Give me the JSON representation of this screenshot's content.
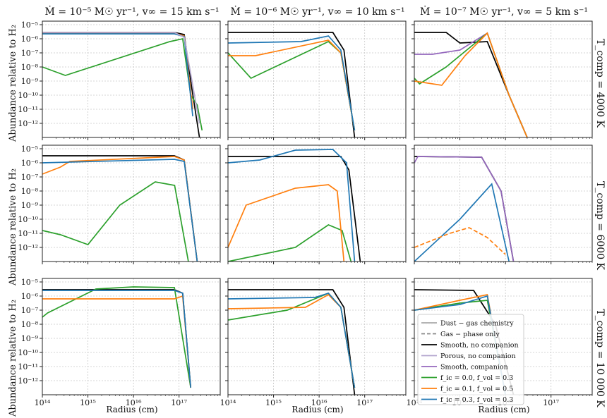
{
  "figure": {
    "col_titles": [
      "Ṁ = 10⁻⁵ M☉ yr⁻¹,  v∞ = 15 km s⁻¹",
      "Ṁ = 10⁻⁶ M☉ yr⁻¹,  v∞ = 10 km s⁻¹",
      "Ṁ = 10⁻⁷ M☉ yr⁻¹,  v∞ = 5 km s⁻¹"
    ],
    "row_labels": [
      "T_comp = 4000 K",
      "T_comp = 6000 K",
      "T_comp = 10 000 K"
    ],
    "ylabel": "Abundance relative to H₂",
    "xlabel": "Radius (cm)"
  },
  "chart_data": {
    "type": "line",
    "xscale": "log",
    "yscale": "log",
    "units": {
      "x": "cm",
      "y": "log10 abundance relative to H2"
    },
    "xlim": [
      100000000000000.0,
      8e+17
    ],
    "ylim_by_row": [
      [
        1e-13,
        1e-05
      ],
      [
        1e-13,
        1e-05
      ],
      [
        1e-13,
        1e-05
      ]
    ],
    "x_ticks": [
      "10¹⁴",
      "10¹⁵",
      "10¹⁶",
      "10¹⁷"
    ],
    "y_ticks": [
      "10⁻⁵",
      "10⁻⁶",
      "10⁻⁷",
      "10⁻⁸",
      "10⁻⁹",
      "10⁻¹⁰",
      "10⁻¹¹",
      "10⁻¹²"
    ],
    "legend": {
      "location": "lower-left of bottom-right panel",
      "entries": [
        {
          "label": "Dust − gas chemistry",
          "color": "#aaaaaa",
          "dash": "solid"
        },
        {
          "label": "Gas − phase only",
          "color": "#888888",
          "dash": "dashed"
        },
        {
          "label": "Smooth, no companion",
          "color": "#000000",
          "dash": "solid"
        },
        {
          "label": "Porous, no companion",
          "color": "#b5a8cf",
          "dash": "solid"
        },
        {
          "label": "Smooth, companion",
          "color": "#9467bd",
          "dash": "solid"
        },
        {
          "label": "f_ic = 0.0, f_vol = 0.3",
          "color": "#2ca02c",
          "dash": "solid"
        },
        {
          "label": "f_ic = 0.1, f_vol = 0.5",
          "color": "#ff7f0e",
          "dash": "solid"
        },
        {
          "label": "f_ic = 0.3, f_vol = 0.3",
          "color": "#1f77b4",
          "dash": "solid"
        }
      ]
    },
    "panels": [
      {
        "row": 0,
        "col": 0,
        "series": [
          {
            "name": "Smooth, no companion",
            "color": "#000000",
            "dash": false,
            "x": [
              100000000000000.0,
              7.9e+16,
              1.3e+17,
              1.9e+17,
              2.8e+17
            ],
            "y": [
              -5.55,
              -5.55,
              -5.7,
              -9.5,
              -13
            ]
          },
          {
            "name": "f_ic = 0.0, f_vol = 0.3",
            "color": "#2ca02c",
            "dash": false,
            "x": [
              100000000000000.0,
              320000000000000.0,
              6.3e+16,
              1.2e+17,
              1.8e+17,
              2.5e+17,
              3.2e+17
            ],
            "y": [
              -8,
              -8.6,
              -6.2,
              -6.0,
              -10,
              -10.7,
              -12.5
            ]
          },
          {
            "name": "f_ic = 0.1, f_vol = 0.5",
            "color": "#ff7f0e",
            "dash": false,
            "x": [
              100000000000000.0,
              7.9e+16,
              1.3e+17,
              2e+17
            ],
            "y": [
              -5.6,
              -5.6,
              -5.8,
              -11
            ]
          },
          {
            "name": "f_ic = 0.3, f_vol = 0.3",
            "color": "#1f77b4",
            "dash": false,
            "x": [
              100000000000000.0,
              7.9e+16,
              1.3e+17,
              2e+17
            ],
            "y": [
              -5.65,
              -5.65,
              -5.85,
              -11.5
            ]
          },
          {
            "name": "Porous, no companion",
            "color": "#b5a8cf",
            "dash": false,
            "x": [
              100000000000000.0,
              7.9e+16,
              1.3e+17,
              2.8e+17
            ],
            "y": [
              -5.55,
              -5.55,
              -5.9,
              -12
            ]
          }
        ]
      },
      {
        "row": 0,
        "col": 1,
        "series": [
          {
            "name": "Smooth, no companion",
            "color": "#000000",
            "dash": false,
            "x": [
              100000000000000.0,
              2e+16,
              3.5e+16,
              6e+16
            ],
            "y": [
              -5.55,
              -5.55,
              -6.8,
              -13
            ]
          },
          {
            "name": "f_ic = 0.0, f_vol = 0.3",
            "color": "#2ca02c",
            "dash": false,
            "x": [
              100000000000000.0,
              320000000000000.0,
              1.6e+16,
              3e+16,
              6e+16
            ],
            "y": [
              -7,
              -8.8,
              -6.2,
              -7,
              -12.5
            ]
          },
          {
            "name": "f_ic = 0.1, f_vol = 0.5",
            "color": "#ff7f0e",
            "dash": false,
            "x": [
              100000000000000.0,
              400000000000000.0,
              1.6e+16,
              3e+16,
              6e+16
            ],
            "y": [
              -7.2,
              -7.2,
              -6.1,
              -7,
              -12.5
            ]
          },
          {
            "name": "f_ic = 0.3, f_vol = 0.3",
            "color": "#1f77b4",
            "dash": false,
            "x": [
              100000000000000.0,
              4000000000000000.0,
              1.6e+16,
              3e+16,
              6e+16
            ],
            "y": [
              -6.3,
              -6.2,
              -5.8,
              -6.8,
              -12.5
            ]
          }
        ]
      },
      {
        "row": 0,
        "col": 2,
        "series": [
          {
            "name": "Smooth, no companion",
            "color": "#000000",
            "dash": false,
            "x": [
              100000000000000.0,
              500000000000000.0,
              1000000000000000.0,
              4000000000000000.0,
              1.2e+16,
              3e+16
            ],
            "y": [
              -5.55,
              -5.55,
              -6.3,
              -6.2,
              -10,
              -13
            ]
          },
          {
            "name": "Smooth, companion",
            "color": "#9467bd",
            "dash": false,
            "x": [
              100000000000000.0,
              250000000000000.0,
              1000000000000000.0,
              4000000000000000.0,
              1.2e+16,
              3e+16
            ],
            "y": [
              -7.1,
              -7.1,
              -6.8,
              -5.6,
              -10,
              -13
            ]
          },
          {
            "name": "f_ic = 0.0, f_vol = 0.3",
            "color": "#2ca02c",
            "dash": false,
            "x": [
              100000000000000.0,
              130000000000000.0,
              500000000000000.0,
              4000000000000000.0,
              1.2e+16,
              3e+16
            ],
            "y": [
              -8.8,
              -9.2,
              -8,
              -5.6,
              -10,
              -13
            ]
          },
          {
            "name": "f_ic = 0.1, f_vol = 0.5",
            "color": "#ff7f0e",
            "dash": false,
            "x": [
              100000000000000.0,
              400000000000000.0,
              1300000000000000.0,
              4000000000000000.0,
              1.2e+16,
              3e+16
            ],
            "y": [
              -9,
              -9.3,
              -7.2,
              -5.6,
              -10,
              -13
            ]
          }
        ]
      },
      {
        "row": 1,
        "col": 0,
        "series": [
          {
            "name": "Smooth, no companion",
            "color": "#000000",
            "dash": false,
            "x": [
              100000000000000.0,
              7.9e+16,
              1.3e+17,
              2.5e+17
            ],
            "y": [
              -5.5,
              -5.5,
              -5.8,
              -13
            ]
          },
          {
            "name": "f_ic = 0.0, f_vol = 0.3",
            "color": "#2ca02c",
            "dash": false,
            "x": [
              100000000000000.0,
              250000000000000.0,
              1000000000000000.0,
              5000000000000000.0,
              3e+16,
              8e+16,
              1.6e+17
            ],
            "y": [
              -10.8,
              -11.1,
              -11.8,
              -9,
              -7.35,
              -7.6,
              -13
            ]
          },
          {
            "name": "f_ic = 0.1, f_vol = 0.5",
            "color": "#ff7f0e",
            "dash": false,
            "x": [
              100000000000000.0,
              250000000000000.0,
              400000000000000.0,
              7.9e+16,
              1.3e+17,
              2.5e+17
            ],
            "y": [
              -6.8,
              -6.3,
              -5.9,
              -5.55,
              -5.8,
              -13
            ]
          },
          {
            "name": "f_ic = 0.3, f_vol = 0.3",
            "color": "#1f77b4",
            "dash": false,
            "x": [
              100000000000000.0,
              7.9e+16,
              1.3e+17,
              2.5e+17
            ],
            "y": [
              -6,
              -5.75,
              -5.9,
              -13
            ]
          }
        ]
      },
      {
        "row": 1,
        "col": 1,
        "series": [
          {
            "name": "Smooth, no companion",
            "color": "#000000",
            "dash": false,
            "x": [
              100000000000000.0,
              3e+16,
              4.5e+16,
              8e+16
            ],
            "y": [
              -5.55,
              -5.55,
              -6.5,
              -13
            ]
          },
          {
            "name": "f_ic = 0.0, f_vol = 0.3",
            "color": "#2ca02c",
            "dash": false,
            "x": [
              100000000000000.0,
              3000000000000000.0,
              1.6e+16,
              3.2e+16,
              5e+16
            ],
            "y": [
              -13,
              -12,
              -10.4,
              -10.8,
              -13
            ]
          },
          {
            "name": "f_ic = 0.1, f_vol = 0.5",
            "color": "#ff7f0e",
            "dash": false,
            "x": [
              100000000000000.0,
              250000000000000.0,
              3000000000000000.0,
              1.6e+16,
              2.5e+16,
              3.5e+16
            ],
            "y": [
              -12,
              -9,
              -7.8,
              -7.55,
              -8,
              -13
            ]
          },
          {
            "name": "f_ic = 0.3, f_vol = 0.3",
            "color": "#1f77b4",
            "dash": false,
            "x": [
              100000000000000.0,
              500000000000000.0,
              3000000000000000.0,
              2e+16,
              4e+16,
              6e+16
            ],
            "y": [
              -6,
              -5.8,
              -5.1,
              -5.05,
              -6,
              -13
            ]
          }
        ]
      },
      {
        "row": 1,
        "col": 2,
        "series": [
          {
            "name": "Smooth, no companion",
            "color": "#000000",
            "dash": false,
            "x": [
              100000000000000.0,
              3000000000000000.0,
              8000000000000000.0,
              1.5e+16
            ],
            "y": [
              -5.55,
              -5.6,
              -8,
              -13
            ]
          },
          {
            "name": "Smooth, companion",
            "color": "#9467bd",
            "dash": false,
            "x": [
              100000000000000.0,
              120000000000000.0,
              3000000000000000.0,
              8000000000000000.0,
              1.5e+16
            ],
            "y": [
              -6,
              -5.55,
              -5.6,
              -8,
              -13
            ]
          },
          {
            "name": "f_ic = 0.3, f_vol = 0.3",
            "color": "#1f77b4",
            "dash": false,
            "x": [
              100000000000000.0,
              1000000000000000.0,
              5000000000000000.0,
              1.2e+16
            ],
            "y": [
              -13,
              -10,
              -7.5,
              -13
            ]
          },
          {
            "name": "f_ic = 0.1, f_vol = 0.5",
            "color": "#ff7f0e",
            "dash": true,
            "x": [
              100000000000000.0,
              600000000000000.0,
              1600000000000000.0,
              4000000000000000.0,
              1e+16
            ],
            "y": [
              -12,
              -11,
              -10.6,
              -11.3,
              -12.5
            ]
          }
        ]
      },
      {
        "row": 2,
        "col": 0,
        "series": [
          {
            "name": "Smooth, no companion",
            "color": "#000000",
            "dash": false,
            "x": [
              100000000000000.0,
              7.9e+16,
              1.2e+17,
              1.8e+17
            ],
            "y": [
              -5.55,
              -5.55,
              -5.8,
              -12.5
            ]
          },
          {
            "name": "f_ic = 0.0, f_vol = 0.3",
            "color": "#2ca02c",
            "dash": false,
            "x": [
              100000000000000.0,
              130000000000000.0,
              1500000000000000.0,
              1e+16,
              7.9e+16,
              1.8e+17
            ],
            "y": [
              -7.5,
              -7.2,
              -5.5,
              -5.35,
              -5.4,
              -12.5
            ]
          },
          {
            "name": "f_ic = 0.1, f_vol = 0.5",
            "color": "#ff7f0e",
            "dash": false,
            "x": [
              100000000000000.0,
              7.9e+16,
              1.2e+17,
              1.8e+17
            ],
            "y": [
              -6.2,
              -6.2,
              -6.0,
              -12.5
            ]
          },
          {
            "name": "f_ic = 0.3, f_vol = 0.3",
            "color": "#1f77b4",
            "dash": false,
            "x": [
              100000000000000.0,
              7.9e+16,
              1.2e+17,
              1.8e+17
            ],
            "y": [
              -5.6,
              -5.6,
              -5.8,
              -12.5
            ]
          }
        ]
      },
      {
        "row": 2,
        "col": 1,
        "series": [
          {
            "name": "Smooth, no companion",
            "color": "#000000",
            "dash": false,
            "x": [
              100000000000000.0,
              2e+16,
              3.5e+16,
              6e+16
            ],
            "y": [
              -5.55,
              -5.55,
              -6.8,
              -13
            ]
          },
          {
            "name": "f_ic = 0.0, f_vol = 0.3",
            "color": "#2ca02c",
            "dash": false,
            "x": [
              100000000000000.0,
              2000000000000000.0,
              1.6e+16,
              3e+16,
              6e+16
            ],
            "y": [
              -7.7,
              -7,
              -5.8,
              -6.8,
              -12.5
            ]
          },
          {
            "name": "f_ic = 0.1, f_vol = 0.5",
            "color": "#ff7f0e",
            "dash": false,
            "x": [
              100000000000000.0,
              5000000000000000.0,
              1.6e+16,
              3e+16,
              6e+16
            ],
            "y": [
              -6.9,
              -6.8,
              -5.9,
              -6.8,
              -12.5
            ]
          },
          {
            "name": "f_ic = 0.3, f_vol = 0.3",
            "color": "#1f77b4",
            "dash": false,
            "x": [
              100000000000000.0,
              8000000000000000.0,
              1.6e+16,
              3e+16,
              6e+16
            ],
            "y": [
              -6.2,
              -6.1,
              -5.8,
              -6.8,
              -12.5
            ]
          }
        ]
      },
      {
        "row": 2,
        "col": 2,
        "series": [
          {
            "name": "Smooth, no companion",
            "color": "#000000",
            "dash": false,
            "x": [
              100000000000000.0,
              2000000000000000.0,
              6000000000000000.0,
              1.5e+16
            ],
            "y": [
              -5.55,
              -5.6,
              -8,
              -13
            ]
          },
          {
            "name": "f_ic = 0.0, f_vol = 0.3",
            "color": "#2ca02c",
            "dash": false,
            "x": [
              100000000000000.0,
              1000000000000000.0,
              4000000000000000.0,
              1e+16
            ],
            "y": [
              -7,
              -6.5,
              -6.3,
              -13
            ]
          },
          {
            "name": "f_ic = 0.1, f_vol = 0.5",
            "color": "#ff7f0e",
            "dash": false,
            "x": [
              100000000000000.0,
              1000000000000000.0,
              4000000000000000.0,
              1e+16
            ],
            "y": [
              -7,
              -6.3,
              -5.9,
              -13
            ]
          },
          {
            "name": "f_ic = 0.3, f_vol = 0.3",
            "color": "#1f77b4",
            "dash": false,
            "x": [
              100000000000000.0,
              1000000000000000.0,
              4000000000000000.0,
              1e+16
            ],
            "y": [
              -7,
              -6.6,
              -6.0,
              -13
            ]
          }
        ]
      }
    ]
  }
}
